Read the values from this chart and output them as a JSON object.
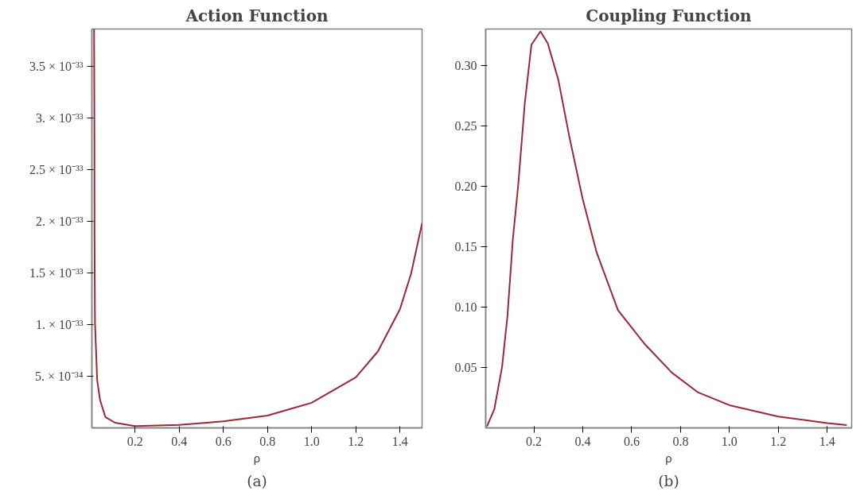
{
  "chart_data": [
    {
      "type": "line",
      "title": "Action Function",
      "xlabel": "ρ",
      "annotations": [
        "(a)"
      ],
      "xlim": [
        0.005,
        1.5
      ],
      "ylim": [
        0,
        3.86e-33
      ],
      "xticks": [
        0.2,
        0.4,
        0.6,
        0.8,
        {
          "value": 1.0,
          "label": "1.0"
        },
        1.2,
        1.4
      ],
      "yticks": [
        {
          "value": 5e-34,
          "label": "5. × 10⁻³⁴"
        },
        {
          "value": 1e-33,
          "label": "1. × 10⁻³³"
        },
        {
          "value": 1.5e-33,
          "label": "1.5 × 10⁻³³"
        },
        {
          "value": 2e-33,
          "label": "2. × 10⁻³³"
        },
        {
          "value": 2.5e-33,
          "label": "2.5 × 10⁻³³"
        },
        {
          "value": 3e-33,
          "label": "3. × 10⁻³³"
        },
        {
          "value": 3.5e-33,
          "label": "3.5 × 10⁻³³"
        }
      ],
      "grid": false,
      "series": [
        {
          "color": "#992a35",
          "x": [
            0.015,
            0.0165,
            0.017,
            0.019,
            0.029,
            0.042,
            0.066,
            0.11,
            0.2,
            0.4,
            0.6,
            0.8,
            1.0,
            1.2,
            1.3,
            1.4,
            1.45,
            1.5
          ],
          "values": [
            3.86e-33,
            2.82e-33,
            1.85e-33,
            1.02e-33,
            4.6e-34,
            2.7e-34,
            1.05e-34,
            5e-35,
            1.7e-35,
            2.8e-35,
            6.4e-35,
            1.19e-34,
            2.43e-34,
            4.9e-34,
            7.4e-34,
            1.15e-33,
            1.49e-33,
            1.98e-33
          ]
        }
      ]
    },
    {
      "type": "line",
      "title": "Coupling Function",
      "xlabel": "ρ",
      "annotations": [
        "(b)"
      ],
      "xlim": [
        0.003,
        1.5
      ],
      "ylim": [
        0,
        0.33
      ],
      "xticks": [
        0.2,
        0.4,
        0.6,
        0.8,
        {
          "value": 1.0,
          "label": "1.0"
        },
        1.2,
        1.4
      ],
      "yticks": [
        0.05,
        {
          "value": 0.1,
          "label": "0.10"
        },
        0.15,
        {
          "value": 0.2,
          "label": "0.20"
        },
        0.25,
        {
          "value": 0.3,
          "label": "0.30"
        }
      ],
      "grid": false,
      "series": [
        {
          "color": "#992a35",
          "x": [
            0.008,
            0.038,
            0.07,
            0.092,
            0.114,
            0.136,
            0.163,
            0.19,
            0.227,
            0.257,
            0.3,
            0.345,
            0.4,
            0.457,
            0.544,
            0.655,
            0.764,
            0.872,
            1.0,
            1.2,
            1.4,
            1.48
          ],
          "values": [
            0.0012,
            0.0153,
            0.0505,
            0.0927,
            0.156,
            0.201,
            0.269,
            0.317,
            0.328,
            0.318,
            0.288,
            0.241,
            0.189,
            0.145,
            0.0974,
            0.069,
            0.0458,
            0.0293,
            0.0188,
            0.0094,
            0.004,
            0.0023
          ]
        }
      ]
    }
  ]
}
